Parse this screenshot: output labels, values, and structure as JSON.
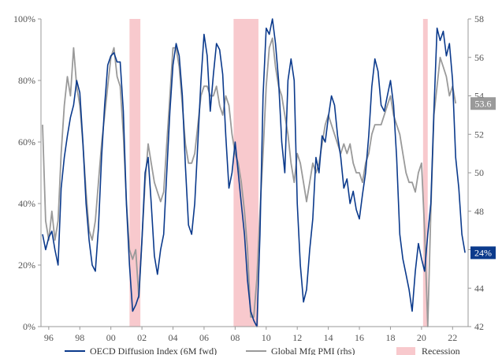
{
  "chart_data": {
    "type": "line",
    "x_axis": {
      "min": 1995.5,
      "max": 2023.0,
      "tick_values": [
        1996,
        1998,
        2000,
        2002,
        2004,
        2006,
        2008,
        2010,
        2012,
        2014,
        2016,
        2018,
        2020,
        2022
      ],
      "tick_labels": [
        "96",
        "98",
        "00",
        "02",
        "04",
        "06",
        "08",
        "10",
        "12",
        "14",
        "16",
        "18",
        "20",
        "22"
      ]
    },
    "y_left": {
      "min": 0,
      "max": 100,
      "tick_values": [
        0,
        20,
        40,
        60,
        80,
        100
      ],
      "tick_labels": [
        "0%",
        "20%",
        "40%",
        "60%",
        "80%",
        "100%"
      ]
    },
    "y_right": {
      "min": 42,
      "max": 58,
      "tick_values": [
        42,
        44,
        46,
        48,
        50,
        52,
        54,
        56,
        58
      ],
      "tick_labels": [
        "42",
        "44",
        "46",
        "48",
        "50",
        "52",
        "54",
        "56",
        "58"
      ]
    },
    "grid": false,
    "legend_position": "bottom",
    "recessions": [
      {
        "name": "Recession",
        "start": 2001.2,
        "end": 2001.9
      },
      {
        "name": "Recession",
        "start": 2007.9,
        "end": 2009.5
      },
      {
        "name": "Recession",
        "start": 2020.1,
        "end": 2020.4
      }
    ],
    "series": [
      {
        "name": "OECD Diffusion Index (6M fwd)",
        "axis": "left",
        "color": "#0b3a8c",
        "end_label": "24%",
        "points": [
          [
            1995.6,
            30
          ],
          [
            1995.8,
            25
          ],
          [
            1996.0,
            29
          ],
          [
            1996.2,
            31
          ],
          [
            1996.4,
            25
          ],
          [
            1996.6,
            20
          ],
          [
            1996.8,
            45
          ],
          [
            1997.0,
            55
          ],
          [
            1997.2,
            62
          ],
          [
            1997.4,
            68
          ],
          [
            1997.6,
            72
          ],
          [
            1997.8,
            80
          ],
          [
            1998.0,
            76
          ],
          [
            1998.2,
            60
          ],
          [
            1998.4,
            40
          ],
          [
            1998.6,
            28
          ],
          [
            1998.8,
            20
          ],
          [
            1999.0,
            18
          ],
          [
            1999.2,
            32
          ],
          [
            1999.4,
            55
          ],
          [
            1999.6,
            72
          ],
          [
            1999.8,
            85
          ],
          [
            2000.0,
            88
          ],
          [
            2000.2,
            89
          ],
          [
            2000.4,
            86
          ],
          [
            2000.6,
            86
          ],
          [
            2000.8,
            70
          ],
          [
            2001.0,
            40
          ],
          [
            2001.2,
            20
          ],
          [
            2001.4,
            5
          ],
          [
            2001.6,
            7
          ],
          [
            2001.8,
            10
          ],
          [
            2002.0,
            28
          ],
          [
            2002.2,
            50
          ],
          [
            2002.4,
            55
          ],
          [
            2002.6,
            40
          ],
          [
            2002.8,
            23
          ],
          [
            2003.0,
            17
          ],
          [
            2003.2,
            25
          ],
          [
            2003.4,
            30
          ],
          [
            2003.6,
            50
          ],
          [
            2003.8,
            70
          ],
          [
            2004.0,
            85
          ],
          [
            2004.2,
            92
          ],
          [
            2004.4,
            88
          ],
          [
            2004.6,
            75
          ],
          [
            2004.8,
            52
          ],
          [
            2005.0,
            33
          ],
          [
            2005.2,
            30
          ],
          [
            2005.4,
            40
          ],
          [
            2005.6,
            60
          ],
          [
            2005.8,
            80
          ],
          [
            2006.0,
            95
          ],
          [
            2006.2,
            88
          ],
          [
            2006.4,
            70
          ],
          [
            2006.6,
            82
          ],
          [
            2006.8,
            92
          ],
          [
            2007.0,
            90
          ],
          [
            2007.2,
            82
          ],
          [
            2007.4,
            62
          ],
          [
            2007.6,
            45
          ],
          [
            2007.8,
            50
          ],
          [
            2008.0,
            60
          ],
          [
            2008.2,
            50
          ],
          [
            2008.4,
            40
          ],
          [
            2008.6,
            30
          ],
          [
            2008.8,
            15
          ],
          [
            2009.0,
            5
          ],
          [
            2009.2,
            2
          ],
          [
            2009.4,
            0
          ],
          [
            2009.6,
            30
          ],
          [
            2009.8,
            75
          ],
          [
            2010.0,
            97
          ],
          [
            2010.2,
            95
          ],
          [
            2010.4,
            100
          ],
          [
            2010.6,
            92
          ],
          [
            2010.8,
            80
          ],
          [
            2011.0,
            60
          ],
          [
            2011.2,
            50
          ],
          [
            2011.4,
            80
          ],
          [
            2011.6,
            87
          ],
          [
            2011.8,
            80
          ],
          [
            2012.0,
            40
          ],
          [
            2012.2,
            20
          ],
          [
            2012.4,
            8
          ],
          [
            2012.6,
            12
          ],
          [
            2012.8,
            25
          ],
          [
            2013.0,
            35
          ],
          [
            2013.2,
            55
          ],
          [
            2013.4,
            50
          ],
          [
            2013.6,
            62
          ],
          [
            2013.8,
            60
          ],
          [
            2014.0,
            68
          ],
          [
            2014.2,
            75
          ],
          [
            2014.4,
            72
          ],
          [
            2014.6,
            62
          ],
          [
            2014.8,
            55
          ],
          [
            2015.0,
            45
          ],
          [
            2015.2,
            48
          ],
          [
            2015.4,
            40
          ],
          [
            2015.6,
            44
          ],
          [
            2015.8,
            38
          ],
          [
            2016.0,
            35
          ],
          [
            2016.2,
            43
          ],
          [
            2016.4,
            50
          ],
          [
            2016.6,
            62
          ],
          [
            2016.8,
            78
          ],
          [
            2017.0,
            87
          ],
          [
            2017.2,
            83
          ],
          [
            2017.4,
            72
          ],
          [
            2017.6,
            70
          ],
          [
            2017.8,
            75
          ],
          [
            2018.0,
            80
          ],
          [
            2018.2,
            72
          ],
          [
            2018.4,
            55
          ],
          [
            2018.6,
            30
          ],
          [
            2018.8,
            22
          ],
          [
            2019.0,
            17
          ],
          [
            2019.2,
            12
          ],
          [
            2019.4,
            5
          ],
          [
            2019.6,
            18
          ],
          [
            2019.8,
            27
          ],
          [
            2020.0,
            22
          ],
          [
            2020.2,
            18
          ],
          [
            2020.4,
            30
          ],
          [
            2020.6,
            40
          ],
          [
            2020.8,
            70
          ],
          [
            2021.0,
            97
          ],
          [
            2021.2,
            93
          ],
          [
            2021.4,
            96
          ],
          [
            2021.6,
            88
          ],
          [
            2021.8,
            92
          ],
          [
            2022.0,
            80
          ],
          [
            2022.2,
            55
          ],
          [
            2022.4,
            45
          ],
          [
            2022.6,
            30
          ],
          [
            2022.8,
            24
          ]
        ]
      },
      {
        "name": "Global Mfg PMI (rhs)",
        "axis": "right",
        "color": "#9a9a9a",
        "end_label": "53.6",
        "points": [
          [
            1995.6,
            52.5
          ],
          [
            1995.8,
            47.5
          ],
          [
            1996.0,
            46.5
          ],
          [
            1996.2,
            48.0
          ],
          [
            1996.4,
            46.5
          ],
          [
            1996.6,
            47.5
          ],
          [
            1996.8,
            51.0
          ],
          [
            1997.0,
            53.5
          ],
          [
            1997.2,
            55.0
          ],
          [
            1997.4,
            54.0
          ],
          [
            1997.6,
            56.5
          ],
          [
            1997.8,
            54.5
          ],
          [
            1998.0,
            53.5
          ],
          [
            1998.2,
            51.5
          ],
          [
            1998.4,
            49.0
          ],
          [
            1998.6,
            47.0
          ],
          [
            1998.8,
            46.5
          ],
          [
            1999.0,
            47.5
          ],
          [
            1999.2,
            49.5
          ],
          [
            1999.4,
            51.5
          ],
          [
            1999.6,
            53.0
          ],
          [
            1999.8,
            54.5
          ],
          [
            2000.0,
            56.0
          ],
          [
            2000.2,
            56.5
          ],
          [
            2000.4,
            55.0
          ],
          [
            2000.6,
            54.5
          ],
          [
            2000.8,
            52.0
          ],
          [
            2001.0,
            48.5
          ],
          [
            2001.2,
            46.0
          ],
          [
            2001.4,
            45.5
          ],
          [
            2001.6,
            46.0
          ],
          [
            2001.8,
            43.5
          ],
          [
            2002.0,
            46.5
          ],
          [
            2002.2,
            49.5
          ],
          [
            2002.4,
            51.5
          ],
          [
            2002.6,
            50.5
          ],
          [
            2002.8,
            49.5
          ],
          [
            2003.0,
            49.0
          ],
          [
            2003.2,
            48.5
          ],
          [
            2003.4,
            49.0
          ],
          [
            2003.6,
            51.5
          ],
          [
            2003.8,
            54.0
          ],
          [
            2004.0,
            56.5
          ],
          [
            2004.2,
            56.5
          ],
          [
            2004.4,
            55.5
          ],
          [
            2004.6,
            53.5
          ],
          [
            2004.8,
            51.5
          ],
          [
            2005.0,
            50.5
          ],
          [
            2005.2,
            50.5
          ],
          [
            2005.4,
            51.0
          ],
          [
            2005.6,
            52.5
          ],
          [
            2005.8,
            54.0
          ],
          [
            2006.0,
            54.5
          ],
          [
            2006.2,
            54.5
          ],
          [
            2006.4,
            54.0
          ],
          [
            2006.6,
            54.0
          ],
          [
            2006.8,
            54.5
          ],
          [
            2007.0,
            53.5
          ],
          [
            2007.2,
            53.0
          ],
          [
            2007.4,
            54.0
          ],
          [
            2007.6,
            53.5
          ],
          [
            2007.8,
            52.0
          ],
          [
            2008.0,
            51.0
          ],
          [
            2008.2,
            50.5
          ],
          [
            2008.4,
            49.5
          ],
          [
            2008.6,
            48.0
          ],
          [
            2008.8,
            46.0
          ],
          [
            2009.0,
            42.5
          ],
          [
            2009.2,
            42.5
          ],
          [
            2009.4,
            44.5
          ],
          [
            2009.6,
            48.0
          ],
          [
            2009.8,
            51.0
          ],
          [
            2010.0,
            54.5
          ],
          [
            2010.2,
            56.5
          ],
          [
            2010.4,
            57.0
          ],
          [
            2010.6,
            55.5
          ],
          [
            2010.8,
            54.5
          ],
          [
            2011.0,
            54.0
          ],
          [
            2011.2,
            53.0
          ],
          [
            2011.4,
            52.0
          ],
          [
            2011.6,
            50.5
          ],
          [
            2011.8,
            49.5
          ],
          [
            2012.0,
            51.0
          ],
          [
            2012.2,
            50.5
          ],
          [
            2012.4,
            49.5
          ],
          [
            2012.6,
            48.5
          ],
          [
            2012.8,
            49.5
          ],
          [
            2013.0,
            50.5
          ],
          [
            2013.2,
            50.0
          ],
          [
            2013.4,
            50.5
          ],
          [
            2013.6,
            51.5
          ],
          [
            2013.8,
            52.5
          ],
          [
            2014.0,
            53.0
          ],
          [
            2014.2,
            52.5
          ],
          [
            2014.4,
            52.0
          ],
          [
            2014.6,
            51.5
          ],
          [
            2014.8,
            51.0
          ],
          [
            2015.0,
            51.5
          ],
          [
            2015.2,
            51.0
          ],
          [
            2015.4,
            51.5
          ],
          [
            2015.6,
            50.5
          ],
          [
            2015.8,
            50.0
          ],
          [
            2016.0,
            50.0
          ],
          [
            2016.2,
            49.5
          ],
          [
            2016.4,
            50.5
          ],
          [
            2016.6,
            51.0
          ],
          [
            2016.8,
            52.0
          ],
          [
            2017.0,
            52.5
          ],
          [
            2017.2,
            52.5
          ],
          [
            2017.4,
            52.5
          ],
          [
            2017.6,
            53.0
          ],
          [
            2017.8,
            53.5
          ],
          [
            2018.0,
            54.0
          ],
          [
            2018.2,
            53.0
          ],
          [
            2018.4,
            52.5
          ],
          [
            2018.6,
            52.0
          ],
          [
            2018.8,
            51.0
          ],
          [
            2019.0,
            50.0
          ],
          [
            2019.2,
            49.5
          ],
          [
            2019.4,
            49.5
          ],
          [
            2019.6,
            49.0
          ],
          [
            2019.8,
            50.0
          ],
          [
            2020.0,
            50.5
          ],
          [
            2020.2,
            47.0
          ],
          [
            2020.4,
            42.0
          ],
          [
            2020.6,
            48.0
          ],
          [
            2020.8,
            53.0
          ],
          [
            2021.0,
            54.5
          ],
          [
            2021.2,
            56.0
          ],
          [
            2021.4,
            55.5
          ],
          [
            2021.6,
            55.0
          ],
          [
            2021.8,
            54.0
          ],
          [
            2022.0,
            54.5
          ],
          [
            2022.2,
            53.6
          ]
        ]
      }
    ],
    "legend": [
      {
        "label": "OECD Diffusion Index (6M fwd)",
        "kind": "line",
        "color": "#0b3a8c"
      },
      {
        "label": "Global Mfg PMI (rhs)",
        "kind": "line",
        "color": "#9a9a9a"
      },
      {
        "label": "Recession",
        "kind": "area",
        "color": "#f8c9cd"
      }
    ],
    "colors": {
      "recession": "#f8c9cd",
      "axis": "#999999",
      "badge_oecd": "#0b3a8c",
      "badge_pmi": "#9a9a9a"
    }
  }
}
